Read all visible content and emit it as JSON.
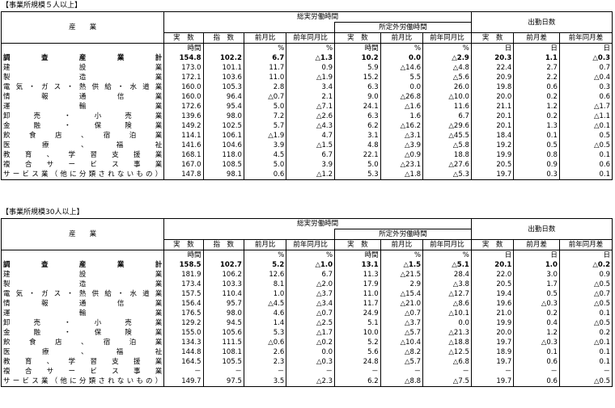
{
  "columns": {
    "industry": "産　　業",
    "hours_group": "総実労働時間",
    "overtime_group": "所定外労働時間",
    "days_group": "出勤日数",
    "actual": "実　数",
    "index": "指　数",
    "mom": "前月比",
    "yoy": "前年同月比",
    "mom_diff": "前月差",
    "yoy_diff": "前年同月差",
    "unit_hours": "時間",
    "unit_pct": "%",
    "unit_days": "日"
  },
  "tables": [
    {
      "caption": "【事業所規模５人以上】",
      "rows": [
        {
          "name": "調　査　産　業　計",
          "bold": true,
          "v": [
            "154.8",
            "102.2",
            "6.7",
            "△1.3",
            "10.2",
            "0.0",
            "△2.9",
            "20.3",
            "1.1",
            "△0.3"
          ]
        },
        {
          "name": "建　設　業",
          "v": [
            "173.0",
            "101.1",
            "11.7",
            "0.9",
            "5.9",
            "△14.6",
            "△4.8",
            "22.4",
            "2.7",
            "0.7"
          ]
        },
        {
          "name": "製　造　業",
          "v": [
            "172.1",
            "103.6",
            "11.0",
            "△1.9",
            "15.2",
            "5.5",
            "△5.6",
            "20.9",
            "2.2",
            "△0.4"
          ]
        },
        {
          "name": "電気・ガス・熱供給・水道業",
          "v": [
            "160.0",
            "105.3",
            "2.8",
            "3.4",
            "6.3",
            "0.0",
            "26.0",
            "19.8",
            "0.6",
            "0.3"
          ]
        },
        {
          "name": "情　報　通　信　業",
          "v": [
            "160.0",
            "96.4",
            "△0.7",
            "2.1",
            "9.0",
            "△26.8",
            "△10.0",
            "20.0",
            "0.2",
            "0.6"
          ]
        },
        {
          "name": "運　輸　業",
          "v": [
            "172.6",
            "95.4",
            "5.0",
            "△7.1",
            "24.1",
            "△1.6",
            "11.6",
            "21.1",
            "1.2",
            "△1.7"
          ]
        },
        {
          "name": "卸　売　・　小　売　業",
          "v": [
            "139.6",
            "98.0",
            "7.2",
            "△2.6",
            "6.3",
            "1.6",
            "6.7",
            "20.1",
            "0.2",
            "△1.1"
          ]
        },
        {
          "name": "金　融　・　保　険　業",
          "v": [
            "149.2",
            "102.5",
            "5.7",
            "△4.3",
            "6.2",
            "△16.2",
            "△29.6",
            "20.1",
            "1.3",
            "△0.1"
          ]
        },
        {
          "name": "飲　食　店　、　宿　泊　業",
          "v": [
            "114.1",
            "106.1",
            "△1.9",
            "4.7",
            "3.1",
            "△3.1",
            "△45.5",
            "18.4",
            "0.1",
            "0.5"
          ]
        },
        {
          "name": "医　療　、　福　祉",
          "v": [
            "141.6",
            "104.6",
            "3.9",
            "△1.5",
            "4.8",
            "△3.9",
            "△5.8",
            "19.2",
            "0.5",
            "△0.5"
          ]
        },
        {
          "name": "教育、学習支援業",
          "v": [
            "168.1",
            "118.0",
            "4.5",
            "6.7",
            "22.1",
            "△0.9",
            "18.8",
            "19.9",
            "0.8",
            "0.1"
          ]
        },
        {
          "name": "複合サービス事業",
          "v": [
            "167.0",
            "108.5",
            "5.0",
            "3.9",
            "5.0",
            "△23.1",
            "△27.6",
            "20.5",
            "0.9",
            "0.6"
          ]
        },
        {
          "name": "サービス業（他に分類されないもの）",
          "v": [
            "147.8",
            "98.1",
            "0.6",
            "△1.2",
            "5.3",
            "△1.8",
            "△5.3",
            "19.7",
            "0.3",
            "0.1"
          ]
        }
      ]
    },
    {
      "caption": "【事業所規模30人以上】",
      "rows": [
        {
          "name": "調　査　産　業　計",
          "bold": true,
          "v": [
            "158.5",
            "102.7",
            "5.2",
            "△1.0",
            "13.1",
            "△1.5",
            "△5.1",
            "20.1",
            "1.0",
            "△0.2"
          ]
        },
        {
          "name": "建　設　業",
          "v": [
            "181.9",
            "106.2",
            "12.6",
            "6.7",
            "11.3",
            "△21.5",
            "28.4",
            "22.0",
            "3.0",
            "0.9"
          ]
        },
        {
          "name": "製　造　業",
          "v": [
            "173.4",
            "103.3",
            "8.1",
            "△2.0",
            "17.9",
            "2.9",
            "△3.8",
            "20.5",
            "1.7",
            "△0.5"
          ]
        },
        {
          "name": "電気・ガス・熱供給・水道業",
          "v": [
            "157.5",
            "110.4",
            "1.0",
            "△3.7",
            "11.0",
            "△15.4",
            "△12.7",
            "19.4",
            "0.5",
            "△0.7"
          ]
        },
        {
          "name": "情　報　通　信　業",
          "v": [
            "156.4",
            "95.7",
            "△4.5",
            "△3.4",
            "11.7",
            "△21.0",
            "△8.6",
            "19.6",
            "△0.3",
            "△0.5"
          ]
        },
        {
          "name": "運　輸　業",
          "v": [
            "176.5",
            "98.0",
            "4.6",
            "△0.7",
            "24.9",
            "△0.7",
            "△10.1",
            "21.0",
            "0.2",
            "0.1"
          ]
        },
        {
          "name": "卸　売　・　小　売　業",
          "v": [
            "129.2",
            "94.5",
            "1.4",
            "△2.5",
            "5.1",
            "△3.7",
            "0.0",
            "19.9",
            "0.4",
            "△0.5"
          ]
        },
        {
          "name": "金　融　・　保　険　業",
          "v": [
            "155.0",
            "105.6",
            "5.3",
            "△1.7",
            "10.0",
            "△5.7",
            "△21.3",
            "20.0",
            "1.2",
            "0.2"
          ]
        },
        {
          "name": "飲　食　店　、　宿　泊　業",
          "v": [
            "134.3",
            "111.5",
            "△0.6",
            "△0.2",
            "5.2",
            "△10.4",
            "△18.8",
            "19.7",
            "△0.3",
            "△0.1"
          ]
        },
        {
          "name": "医　療　、　福　祉",
          "v": [
            "144.8",
            "108.1",
            "2.6",
            "0.0",
            "5.6",
            "△8.2",
            "△12.5",
            "18.9",
            "0.1",
            "0.1"
          ]
        },
        {
          "name": "教育、学習支援業",
          "v": [
            "164.5",
            "105.5",
            "2.3",
            "△0.3",
            "24.8",
            "△5.7",
            "△6.8",
            "19.7",
            "0.6",
            "0.1"
          ]
        },
        {
          "name": "複合サービス事業",
          "v": [
            "－",
            "－",
            "－",
            "－",
            "－",
            "－",
            "－",
            "－",
            "－",
            "－"
          ]
        },
        {
          "name": "サービス業（他に分類されないもの）",
          "v": [
            "149.7",
            "97.5",
            "3.5",
            "△2.3",
            "6.2",
            "△8.8",
            "△7.5",
            "19.7",
            "0.6",
            "△0.5"
          ]
        }
      ]
    }
  ]
}
